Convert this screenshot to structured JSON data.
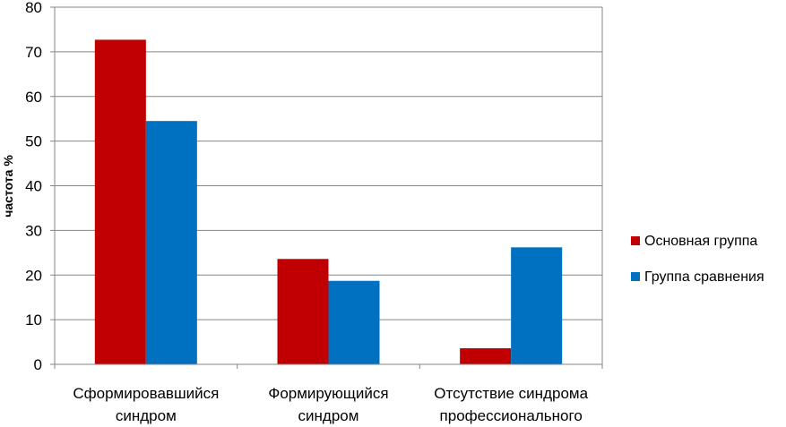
{
  "chart_data": {
    "type": "bar",
    "title": "",
    "xlabel": "",
    "ylabel": "частота %",
    "ylim": [
      0,
      80
    ],
    "yticks": [
      0,
      10,
      20,
      30,
      40,
      50,
      60,
      70,
      80
    ],
    "grid": true,
    "legend_position": "right",
    "categories": [
      [
        "Сформировавшийся",
        "синдром"
      ],
      [
        "Формирующийся",
        "синдром"
      ],
      [
        "Отсутствие синдрома",
        "профессионального"
      ]
    ],
    "series": [
      {
        "name": "Основная группа",
        "color": "#c00000",
        "values": [
          72.7,
          23.6,
          3.6
        ]
      },
      {
        "name": "Группа сравнения",
        "color": "#0070c0",
        "values": [
          54.5,
          18.7,
          26.2
        ]
      }
    ]
  }
}
